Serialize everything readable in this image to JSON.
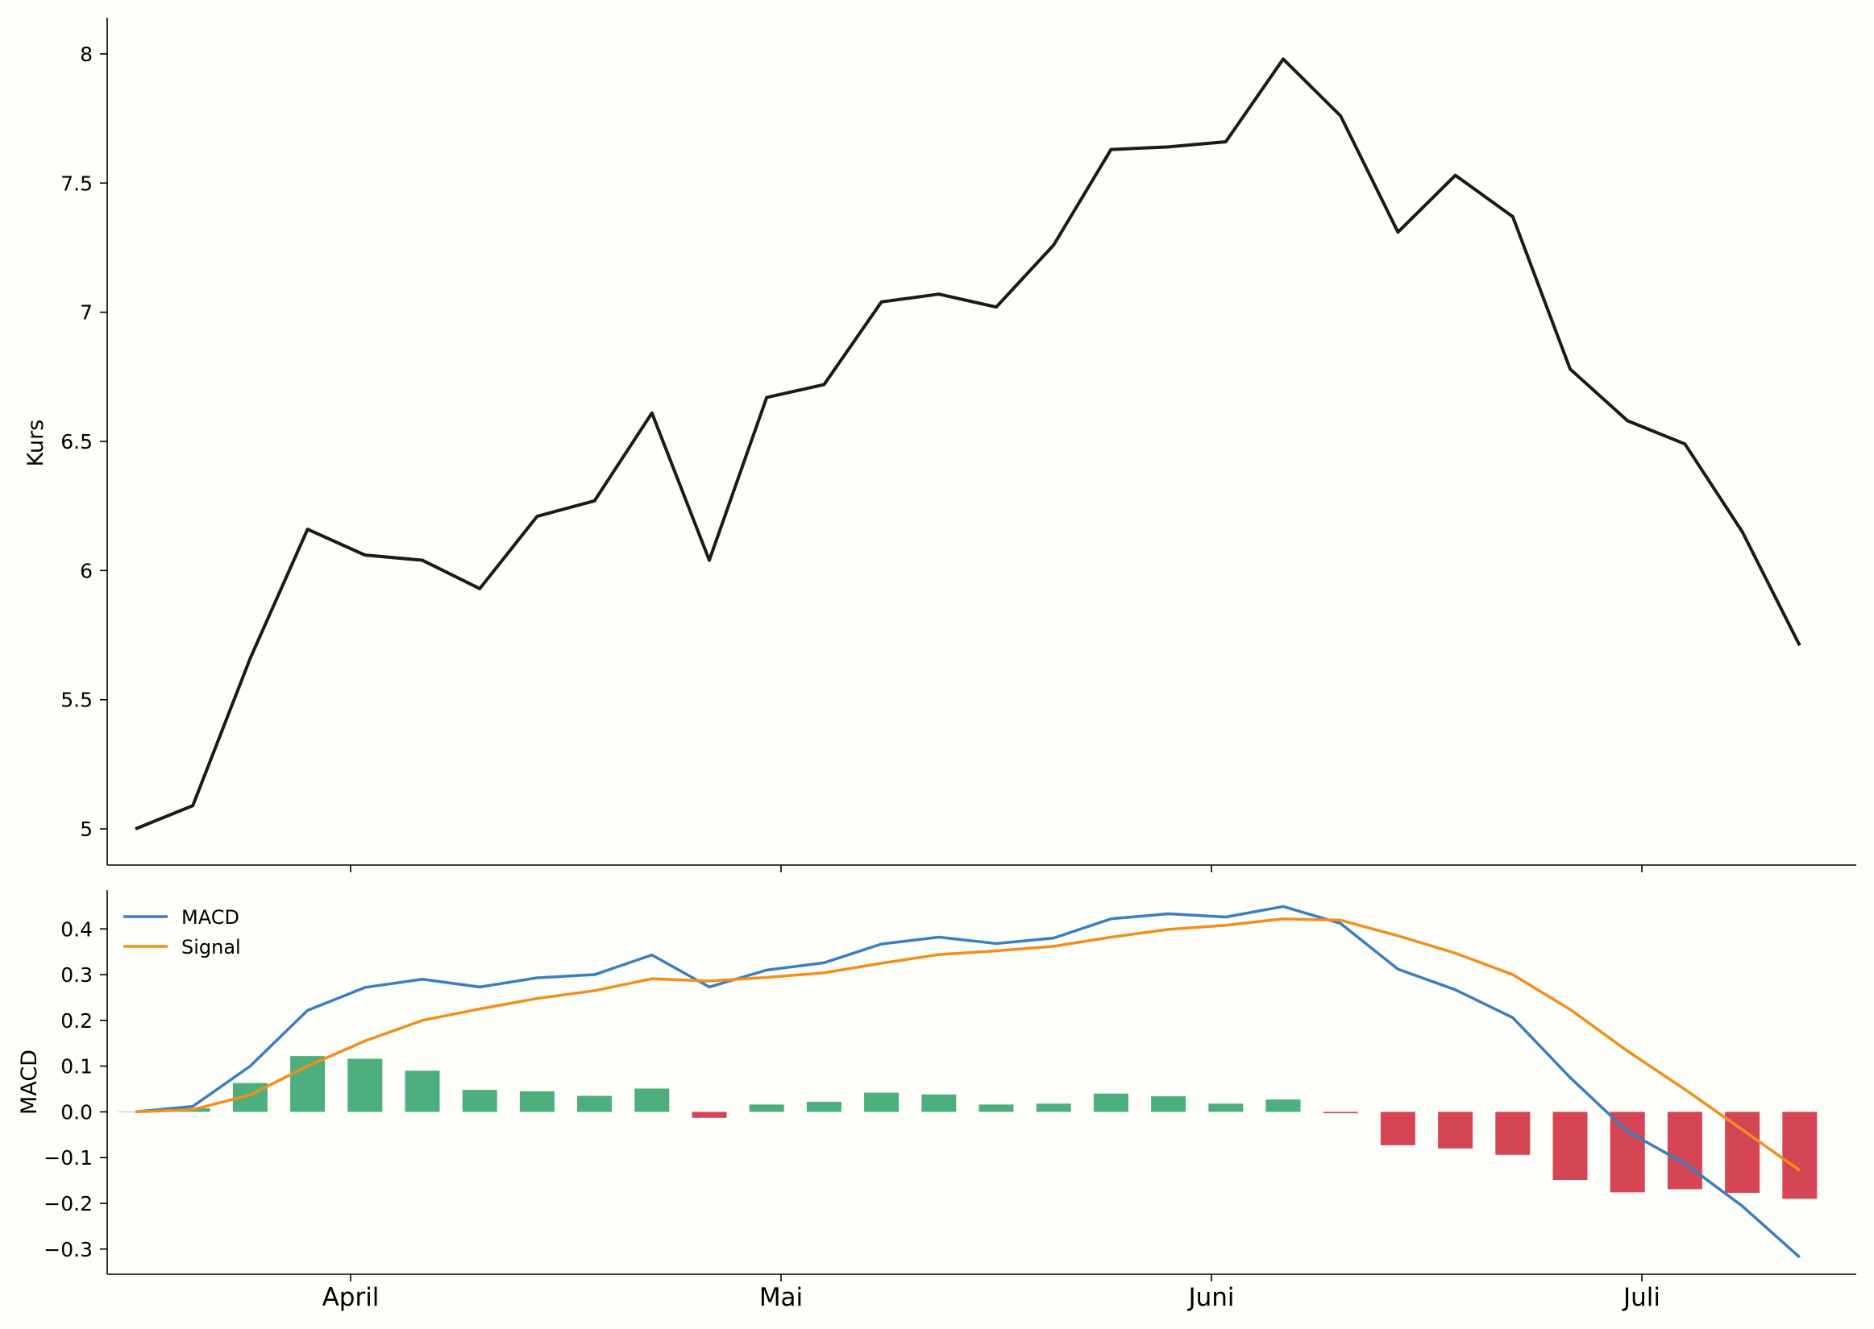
{
  "chart_data": [
    {
      "type": "line",
      "ylabel": "Kurs",
      "ylim": [
        4.86,
        8.14
      ],
      "yticks": [
        5.0,
        5.5,
        6.0,
        6.5,
        7.0,
        7.5,
        8.0
      ],
      "grid": false,
      "series": [
        {
          "color": "#1a1a1a",
          "values": [
            5.0,
            5.09,
            5.66,
            6.16,
            6.06,
            6.04,
            5.93,
            6.21,
            6.27,
            6.61,
            6.04,
            6.67,
            6.72,
            7.04,
            7.07,
            7.02,
            7.26,
            7.63,
            7.64,
            7.66,
            7.98,
            7.76,
            7.31,
            7.53,
            7.37,
            6.78,
            6.58,
            6.49,
            6.15,
            5.71
          ]
        }
      ]
    },
    {
      "type": "line",
      "ylabel": "MACD",
      "ylim": [
        -0.355,
        0.485
      ],
      "yticks": [
        "0.4",
        "0.3",
        "0.2",
        "0.1",
        "0.0",
        "−0.1",
        "−0.2",
        "−0.3"
      ],
      "grid": false,
      "legend": "top-left",
      "series": [
        {
          "name": "MACD",
          "color": "#3a7ebf",
          "values": [
            0.0,
            0.012,
            0.1,
            0.222,
            0.272,
            0.29,
            0.273,
            0.293,
            0.3,
            0.343,
            0.273,
            0.31,
            0.326,
            0.367,
            0.382,
            0.368,
            0.38,
            0.422,
            0.433,
            0.426,
            0.449,
            0.412,
            0.312,
            0.267,
            0.206,
            0.075,
            -0.043,
            -0.113,
            -0.206,
            -0.318
          ]
        },
        {
          "name": "Signal",
          "color": "#f28e1c",
          "values": [
            0.0,
            0.005,
            0.037,
            0.1,
            0.155,
            0.2,
            0.225,
            0.248,
            0.265,
            0.291,
            0.286,
            0.294,
            0.304,
            0.325,
            0.344,
            0.352,
            0.362,
            0.382,
            0.399,
            0.408,
            0.422,
            0.419,
            0.385,
            0.347,
            0.3,
            0.224,
            0.133,
            0.049,
            -0.039,
            -0.128
          ]
        }
      ],
      "histogram": {
        "positive_color": "#4caf7d",
        "negative_color": "#d64554",
        "values": [
          0.0,
          0.008,
          0.063,
          0.122,
          0.116,
          0.09,
          0.048,
          0.045,
          0.035,
          0.051,
          -0.013,
          0.016,
          0.022,
          0.042,
          0.038,
          0.016,
          0.018,
          0.04,
          0.034,
          0.018,
          0.027,
          -0.003,
          -0.073,
          -0.08,
          -0.094,
          -0.149,
          -0.176,
          -0.169,
          -0.177,
          -0.19
        ]
      }
    }
  ],
  "x_axis": {
    "tick_labels": [
      "April",
      "Mai",
      "Juni",
      "Juli"
    ],
    "tick_positions": [
      3.75,
      11.25,
      18.75,
      26.25
    ]
  }
}
